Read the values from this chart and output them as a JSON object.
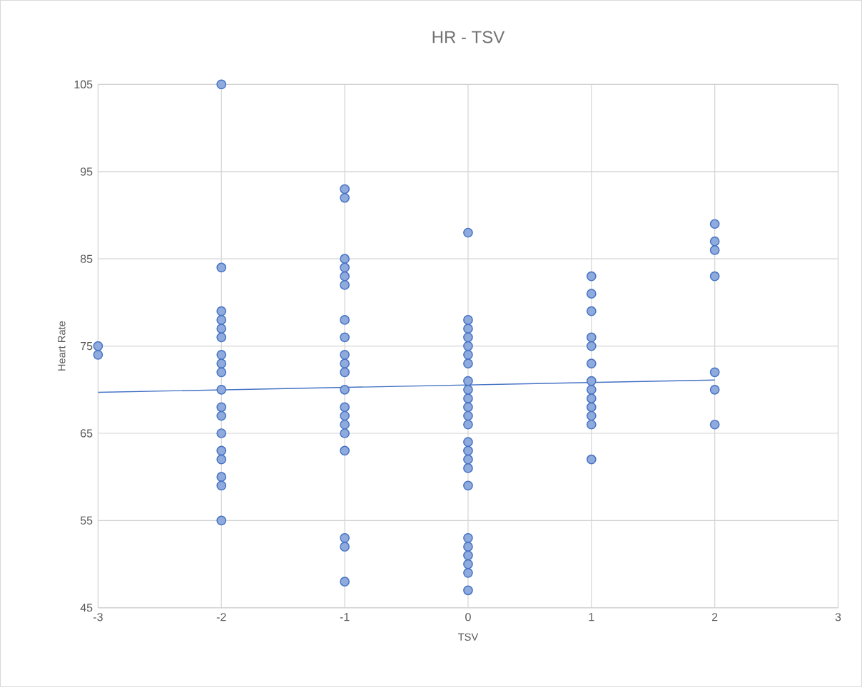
{
  "chart_data": {
    "type": "scatter",
    "title": "HR - TSV",
    "xlabel": "TSV",
    "ylabel": "Heart Rate",
    "xlim": [
      -3,
      3
    ],
    "xticks": [
      -3,
      -2,
      -1,
      0,
      1,
      2,
      3
    ],
    "ylim": [
      45,
      105
    ],
    "yticks": [
      45,
      55,
      65,
      75,
      85,
      95,
      105
    ],
    "grid": true,
    "marker": "circle",
    "series": [
      {
        "color": "#4472c4",
        "x": [
          -3,
          -3,
          -2,
          -2,
          -2,
          -2,
          -2,
          -2,
          -2,
          -2,
          -2,
          -2,
          -2,
          -2,
          -2,
          -2,
          -2,
          -2,
          -2,
          -2,
          -1,
          -1,
          -1,
          -1,
          -1,
          -1,
          -1,
          -1,
          -1,
          -1,
          -1,
          -1,
          -1,
          -1,
          -1,
          -1,
          -1,
          -1,
          -1,
          -1,
          0,
          0,
          0,
          0,
          0,
          0,
          0,
          0,
          0,
          0,
          0,
          0,
          0,
          0,
          0,
          0,
          0,
          0,
          0,
          0,
          0,
          0,
          0,
          0,
          1,
          1,
          1,
          1,
          1,
          1,
          1,
          1,
          1,
          1,
          1,
          1,
          1,
          2,
          2,
          2,
          2,
          2,
          2,
          2
        ],
        "values": [
          75,
          74,
          105,
          84,
          79,
          78,
          77,
          76,
          74,
          73,
          72,
          70,
          68,
          67,
          65,
          63,
          62,
          60,
          59,
          55,
          93,
          92,
          85,
          84,
          83,
          82,
          78,
          76,
          74,
          73,
          72,
          70,
          68,
          67,
          66,
          65,
          63,
          53,
          52,
          48,
          88,
          78,
          77,
          76,
          75,
          74,
          73,
          71,
          70,
          69,
          68,
          67,
          66,
          64,
          63,
          62,
          61,
          59,
          53,
          52,
          51,
          50,
          49,
          47,
          83,
          81,
          79,
          76,
          75,
          73,
          71,
          70,
          69,
          68,
          67,
          66,
          62,
          89,
          87,
          86,
          83,
          72,
          70,
          66
        ]
      },
      {
        "type": "line",
        "color": "#4472c4",
        "marker": "none",
        "x": [
          -3,
          2
        ],
        "values": [
          69.7,
          71.1
        ]
      }
    ]
  }
}
